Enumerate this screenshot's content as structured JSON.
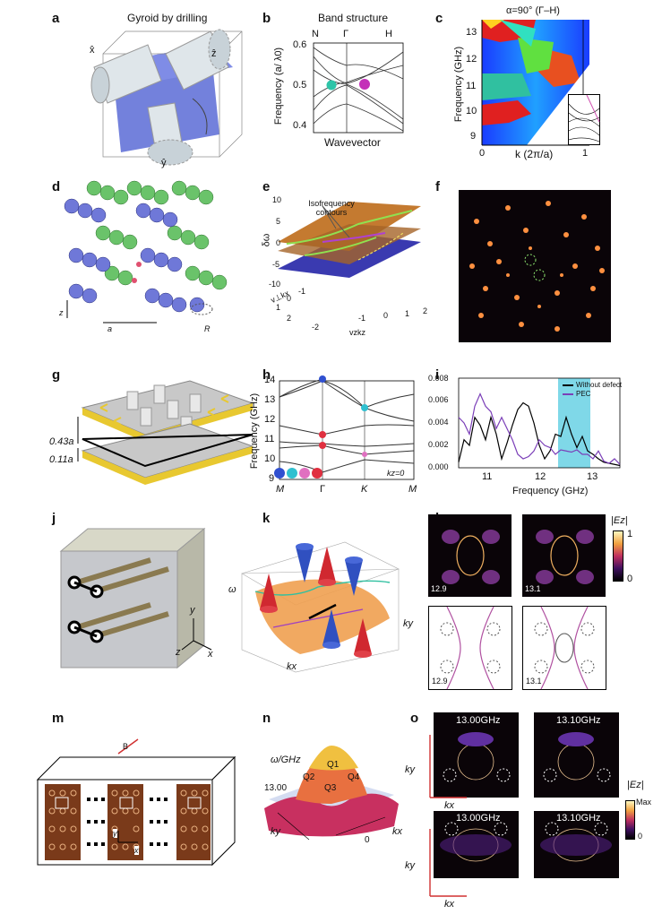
{
  "panels": {
    "a": {
      "label": "a",
      "title": "Gyroid by drilling",
      "axes": [
        "x̂",
        "ẑ",
        "ŷ"
      ]
    },
    "b": {
      "label": "b",
      "title": "Band structure",
      "xticks": [
        "N",
        "Γ",
        "H"
      ],
      "ylabel": "Frequency (a/ λ0)",
      "yticks": [
        "0.6",
        "0.5",
        "0.4"
      ],
      "xlabel": "Wavevector"
    },
    "c": {
      "label": "c",
      "title": "α=90° (Γ–H)",
      "ylabel": "Frequency (GHz)",
      "yticks": [
        "13",
        "12",
        "11",
        "10",
        "9"
      ],
      "xlabel": "k (2π/a)",
      "xticks": [
        "0",
        "1"
      ]
    },
    "d": {
      "label": "d",
      "axis_z": "z",
      "axis_a": "a",
      "axis_R": "R"
    },
    "e": {
      "label": "e",
      "annotation": "Isofrequency contours",
      "ylabel": "δω",
      "yticks": [
        "10",
        "5",
        "0",
        "-5",
        "-10"
      ],
      "x1label": "v⊥kx",
      "x1ticks": [
        "2",
        "1",
        "0",
        "-1",
        "-2"
      ],
      "x2label": "vzkz",
      "x2ticks": [
        "-1",
        "0",
        "1",
        "2"
      ]
    },
    "f": {
      "label": "f"
    },
    "g": {
      "label": "g",
      "dim1": "0.43a",
      "dim2": "0.11a"
    },
    "h": {
      "label": "h",
      "ylabel": "Frequency (GHz)",
      "yticks": [
        "14",
        "13",
        "12",
        "11",
        "10",
        "9"
      ],
      "xticks": [
        "M",
        "Γ",
        "K",
        "M"
      ],
      "annotation": "kz=0"
    },
    "i": {
      "label": "i",
      "yticks": [
        "0.008",
        "0.006",
        "0.004",
        "0.002",
        "0.000"
      ],
      "xticks": [
        "11",
        "12",
        "13"
      ],
      "xlabel": "Frequency (GHz)",
      "legend": [
        "Without defect",
        "PEC"
      ]
    },
    "j": {
      "label": "j",
      "axes": [
        "y",
        "z",
        "x"
      ]
    },
    "k": {
      "label": "k",
      "ylabel": "ω",
      "x1label": "kx",
      "x2label": "ky"
    },
    "l": {
      "label": "l",
      "colorbar_title": "|Ez|",
      "cb_max": "1",
      "cb_min": "0",
      "frames": [
        "12.9",
        "13.1",
        "12.9",
        "13.1"
      ]
    },
    "m": {
      "label": "m",
      "vec_b": "B",
      "vec_y": "y",
      "vec_x": "x"
    },
    "n": {
      "label": "n",
      "ylabel": "ω/GHz",
      "level": "13.00",
      "q1": "Q1",
      "q2": "Q2",
      "q3": "Q3",
      "q4": "Q4",
      "ky": "ky",
      "kx": "kx",
      "zero": "0"
    },
    "o": {
      "label": "o",
      "freqs": [
        "13.00GHz",
        "13.10GHz",
        "13.00GHz",
        "13.10GHz"
      ],
      "ky": "ky",
      "kx": "kx",
      "colorbar_title": "|Ez|",
      "cb_max": "Max",
      "cb_min": "0"
    }
  },
  "chart_data": [
    {
      "panel": "i",
      "type": "line",
      "xlabel": "Frequency (GHz)",
      "ylim": [
        0,
        0.008
      ],
      "xlim": [
        10.5,
        13.5
      ],
      "shaded_band": [
        12.35,
        12.95
      ],
      "series": [
        {
          "name": "Without defect",
          "color": "#000000",
          "x": [
            10.5,
            10.6,
            10.7,
            10.8,
            10.9,
            11.0,
            11.1,
            11.2,
            11.3,
            11.4,
            11.5,
            11.6,
            11.7,
            11.8,
            11.9,
            12.0,
            12.1,
            12.2,
            12.3,
            12.4,
            12.5,
            12.6,
            12.7,
            12.8,
            12.9,
            13.0,
            13.1,
            13.2,
            13.3,
            13.4,
            13.5
          ],
          "values": [
            0.0005,
            0.0025,
            0.002,
            0.0045,
            0.0038,
            0.0025,
            0.0045,
            0.003,
            0.0008,
            0.0022,
            0.0038,
            0.0052,
            0.0058,
            0.0055,
            0.004,
            0.002,
            0.0008,
            0.0015,
            0.003,
            0.0028,
            0.0045,
            0.003,
            0.0018,
            0.0028,
            0.0015,
            0.0012,
            0.0008,
            0.0005,
            0.0004,
            0.0003,
            0.0002
          ]
        },
        {
          "name": "PEC",
          "color": "#7b3fb8",
          "x": [
            10.5,
            10.6,
            10.7,
            10.8,
            10.9,
            11.0,
            11.1,
            11.2,
            11.3,
            11.4,
            11.5,
            11.6,
            11.7,
            11.8,
            11.9,
            12.0,
            12.1,
            12.2,
            12.3,
            12.4,
            12.5,
            12.6,
            12.7,
            12.8,
            12.9,
            13.0,
            13.1,
            13.2,
            13.3,
            13.4,
            13.5
          ],
          "values": [
            0.0045,
            0.004,
            0.003,
            0.0055,
            0.0066,
            0.0055,
            0.005,
            0.0035,
            0.0045,
            0.0035,
            0.0025,
            0.0012,
            0.0008,
            0.001,
            0.0015,
            0.0025,
            0.002,
            0.0018,
            0.0012,
            0.0016,
            0.0015,
            0.0014,
            0.0016,
            0.0012,
            0.0012,
            0.0008,
            0.0015,
            0.0006,
            0.0004,
            0.0008,
            0.0003
          ]
        }
      ]
    }
  ]
}
